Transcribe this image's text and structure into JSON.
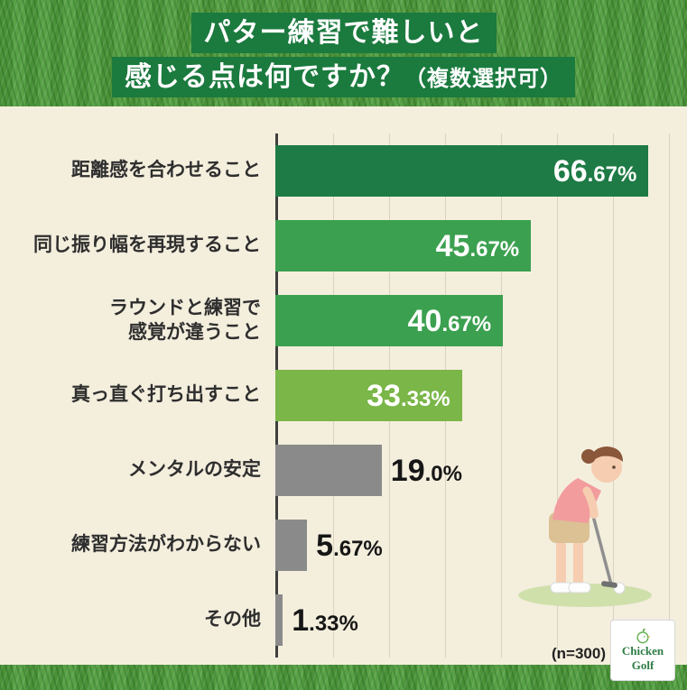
{
  "title": {
    "line1": "パター練習で難しいと",
    "line2": "感じる点は何ですか？",
    "note": "（複数選択可）"
  },
  "chart_data": {
    "type": "bar",
    "orientation": "horizontal",
    "title": "パター練習で難しいと感じる点は何ですか？（複数選択可）",
    "xlabel": "",
    "ylabel": "",
    "x_max_percent": 70,
    "grid_step_percent": 10,
    "grid": true,
    "categories": [
      "距離感を合わせること",
      "同じ振り幅を再現すること",
      "ラウンドと練習で感覚が違うこと",
      "真っ直ぐ打ち出すこと",
      "メンタルの安定",
      "練習方法がわからない",
      "その他"
    ],
    "values": [
      66.67,
      45.67,
      40.67,
      33.33,
      19.0,
      5.67,
      1.33
    ],
    "rows": [
      {
        "lines": [
          "距離感を合わせること"
        ],
        "value": 66.67,
        "display_int": "66",
        "display_frac": ".67%",
        "color": "#1e7b45",
        "label_position": "inside"
      },
      {
        "lines": [
          "同じ振り幅を再現すること"
        ],
        "value": 45.67,
        "display_int": "45",
        "display_frac": ".67%",
        "color": "#3ba04f",
        "label_position": "inside"
      },
      {
        "lines": [
          "ラウンドと練習で",
          "感覚が違うこと"
        ],
        "value": 40.67,
        "display_int": "40",
        "display_frac": ".67%",
        "color": "#3ba04f",
        "label_position": "inside"
      },
      {
        "lines": [
          "真っ直ぐ打ち出すこと"
        ],
        "value": 33.33,
        "display_int": "33",
        "display_frac": ".33%",
        "color": "#7ab648",
        "label_position": "inside"
      },
      {
        "lines": [
          "メンタルの安定"
        ],
        "value": 19.0,
        "display_int": "19",
        "display_frac": ".0%",
        "color": "#8a8a8a",
        "label_position": "outside"
      },
      {
        "lines": [
          "練習方法がわからない"
        ],
        "value": 5.67,
        "display_int": "5",
        "display_frac": ".67%",
        "color": "#8a8a8a",
        "label_position": "outside"
      },
      {
        "lines": [
          "その他"
        ],
        "value": 1.33,
        "display_int": "1",
        "display_frac": ".33%",
        "color": "#8a8a8a",
        "label_position": "outside"
      }
    ]
  },
  "footer": {
    "sample": "(n=300)"
  },
  "logo": {
    "line1": "Chicken",
    "line2": "Golf"
  },
  "colors": {
    "title_band": "#1b7a3e",
    "background": "#f4eedd",
    "grass": "#4f9c3c",
    "grid_line": "#d8d2bf",
    "axis_line": "#3f3f3f",
    "bar_dark_green": "#1e7b45",
    "bar_green": "#3ba04f",
    "bar_light_green": "#7ab648",
    "bar_gray": "#8a8a8a"
  }
}
